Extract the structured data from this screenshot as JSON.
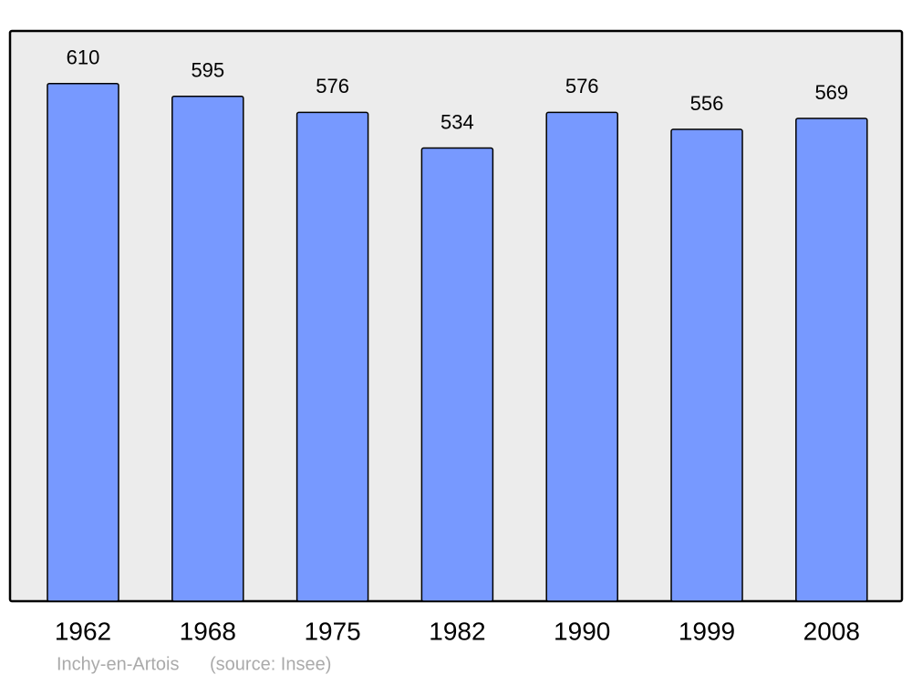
{
  "chart_data": {
    "type": "bar",
    "categories": [
      "1962",
      "1968",
      "1975",
      "1982",
      "1990",
      "1999",
      "2008"
    ],
    "values": [
      610,
      595,
      576,
      534,
      576,
      556,
      569
    ],
    "color": "#7799ff",
    "ylim": [
      0,
      672
    ],
    "footer": {
      "place": "Inchy-en-Artois",
      "source": "(source: Insee)"
    }
  }
}
